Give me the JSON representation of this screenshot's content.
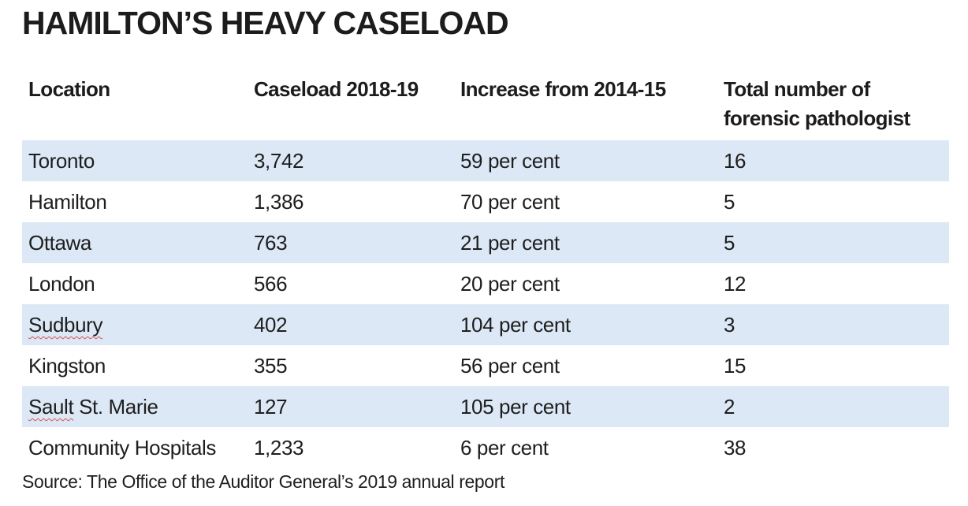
{
  "chart_data": {
    "type": "table",
    "title": "HAMILTON’S HEAVY CASELOAD",
    "columns": [
      "Location",
      "Caseload 2018-19",
      "Increase from 2014-15",
      "Total number of forensic pathologist"
    ],
    "rows": [
      [
        "Toronto",
        "3,742",
        "59 per cent",
        "16"
      ],
      [
        "Hamilton",
        "1,386",
        "70 per cent",
        "5"
      ],
      [
        "Ottawa",
        "763",
        "21 per cent",
        "5"
      ],
      [
        "London",
        "566",
        "20 per cent",
        "12"
      ],
      [
        "Sudbury",
        "402",
        "104 per cent",
        "3"
      ],
      [
        "Kingston",
        "355",
        "56 per cent",
        "15"
      ],
      [
        "Sault St. Marie",
        "127",
        "105 per cent",
        "2"
      ],
      [
        "Community Hospitals",
        "1,233",
        "6 per cent",
        "38"
      ]
    ],
    "source": "Source: The Office of the Auditor General’s 2019 annual report"
  },
  "colors": {
    "row_shade": "#dce8f6",
    "text": "#1e1e1e",
    "spellcheck_underline": "#d9534f"
  }
}
